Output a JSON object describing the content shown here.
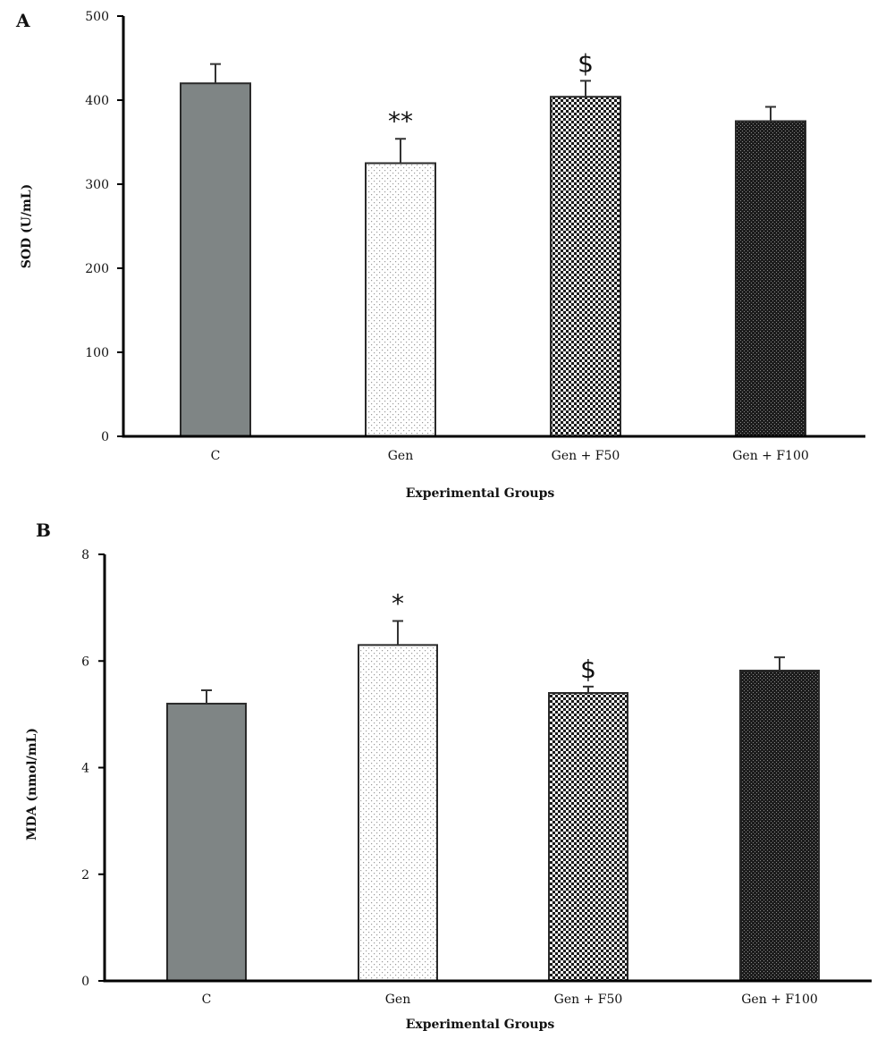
{
  "chart_data": [
    {
      "type": "bar",
      "panel_label": "A",
      "categories": [
        "C",
        "Gen",
        "Gen + F50",
        "Gen + F100"
      ],
      "values": [
        420,
        325,
        404,
        375
      ],
      "errors": [
        23,
        29,
        19,
        17
      ],
      "significance": [
        "",
        "**",
        "$",
        ""
      ],
      "fills": [
        "solid-gray",
        "light-dots",
        "checker",
        "dense-dark"
      ],
      "xlabel": "Experimental Groups",
      "ylabel": "SOD (U/mL)",
      "ylim": [
        0,
        500
      ],
      "yticks": [
        0,
        100,
        200,
        300,
        400,
        500
      ],
      "grid": false,
      "legend": "none"
    },
    {
      "type": "bar",
      "panel_label": "B",
      "categories": [
        "C",
        "Gen",
        "Gen + F50",
        "Gen + F100"
      ],
      "values": [
        5.2,
        6.3,
        5.4,
        5.82
      ],
      "errors": [
        0.25,
        0.45,
        0.12,
        0.25
      ],
      "significance": [
        "",
        "*",
        "$",
        ""
      ],
      "fills": [
        "solid-gray",
        "light-dots",
        "checker",
        "dense-dark"
      ],
      "xlabel": "Experimental Groups",
      "ylabel": "MDA (nmol/mL)",
      "ylim": [
        0,
        8
      ],
      "yticks": [
        0,
        2,
        4,
        6,
        8
      ],
      "grid": false,
      "legend": "none"
    }
  ],
  "colors": {
    "solid_gray": "#7f8585",
    "axis": "#000000",
    "dark_checker": "#1a1a1a",
    "bar_outline": "#2a2a2a"
  }
}
